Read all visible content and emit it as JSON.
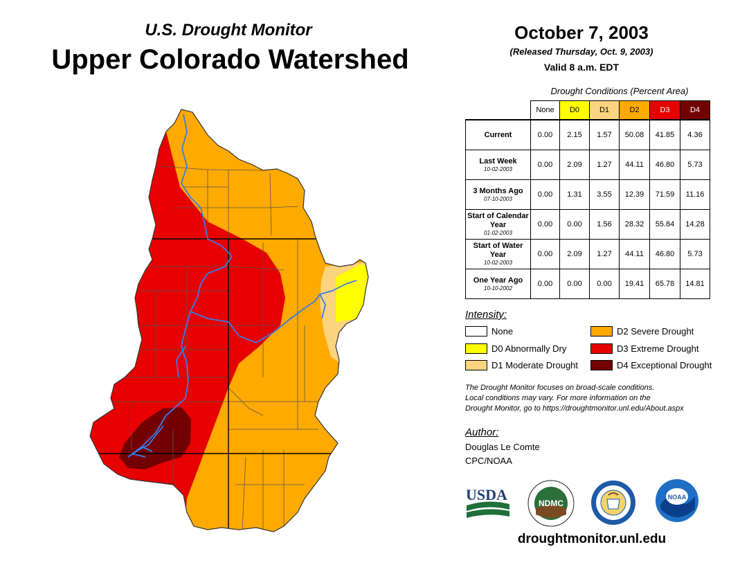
{
  "header": {
    "subtitle": "U.S. Drought Monitor",
    "title": "Upper Colorado Watershed",
    "date": "October 7, 2003",
    "released": "(Released Thursday, Oct. 9, 2003)",
    "valid": "Valid 8 a.m. EDT"
  },
  "table": {
    "caption": "Drought Conditions (Percent Area)",
    "columns": [
      "None",
      "D0",
      "D1",
      "D2",
      "D3",
      "D4"
    ],
    "rows": [
      {
        "label": "Current",
        "date": "",
        "values": [
          "0.00",
          "2.15",
          "1.57",
          "50.08",
          "41.85",
          "4.36"
        ]
      },
      {
        "label": "Last Week",
        "date": "10-02-2003",
        "values": [
          "0.00",
          "2.09",
          "1.27",
          "44.11",
          "46.80",
          "5.73"
        ]
      },
      {
        "label": "3 Months Ago",
        "date": "07-10-2003",
        "values": [
          "0.00",
          "1.31",
          "3.55",
          "12.39",
          "71.59",
          "11.16"
        ]
      },
      {
        "label": "Start of Calendar Year",
        "date": "01-02-2003",
        "values": [
          "0.00",
          "0.00",
          "1.56",
          "28.32",
          "55.84",
          "14.28"
        ]
      },
      {
        "label": "Start of Water Year",
        "date": "10-02-2003",
        "values": [
          "0.00",
          "2.09",
          "1.27",
          "44.11",
          "46.80",
          "5.73"
        ]
      },
      {
        "label": "One Year Ago",
        "date": "10-10-2002",
        "values": [
          "0.00",
          "0.00",
          "0.00",
          "19.41",
          "65.78",
          "14.81"
        ]
      }
    ]
  },
  "legend": {
    "title": "Intensity:",
    "items": [
      {
        "label": "None",
        "color": "#ffffff"
      },
      {
        "label": "D0 Abnormally Dry",
        "color": "#ffff00"
      },
      {
        "label": "D1 Moderate Drought",
        "color": "#fcd37f"
      },
      {
        "label": "D2 Severe Drought",
        "color": "#ffaa00"
      },
      {
        "label": "D3 Extreme Drought",
        "color": "#e60000"
      },
      {
        "label": "D4 Exceptional Drought",
        "color": "#730000"
      }
    ]
  },
  "note": {
    "line1": "The Drought Monitor focuses on broad-scale conditions.",
    "line2": "Local conditions may vary. For more information on the",
    "line3": "Drought Monitor, go to https://droughtmonitor.unl.edu/About.aspx"
  },
  "author": {
    "heading": "Author:",
    "name": "Douglas Le Comte",
    "org": "CPC/NOAA"
  },
  "logos": {
    "usda": "USDA",
    "ndmc": "NDMC",
    "noaa": "NOAA"
  },
  "footer": {
    "site": "droughtmonitor.unl.edu"
  },
  "colors": {
    "d0": "#ffff00",
    "d1": "#fcd37f",
    "d2": "#ffaa00",
    "d3": "#e60000",
    "d4": "#730000",
    "river": "#3b7bea"
  }
}
